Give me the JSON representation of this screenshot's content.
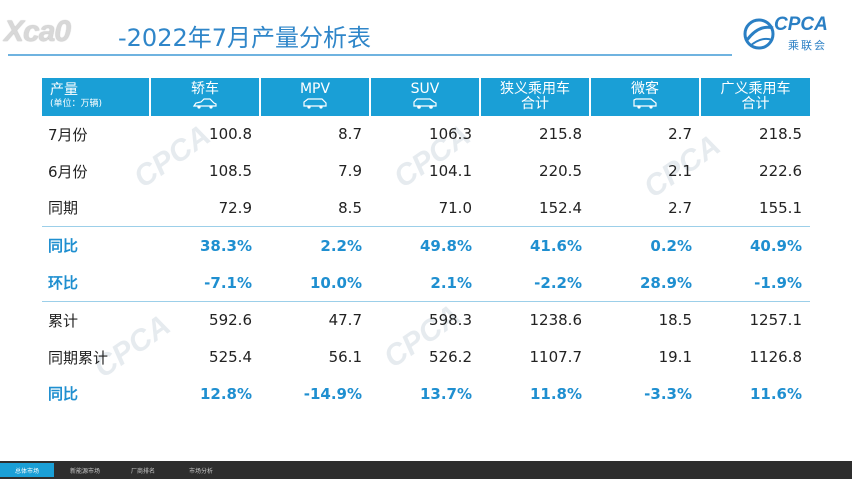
{
  "header": {
    "logo_text": "Xca0",
    "title": "-2022年7月产量分析表",
    "brand_logo": {
      "latin": "CPCA",
      "cn": "乘联会"
    }
  },
  "table": {
    "corner": {
      "main": "产量",
      "sub": "(单位：万辆)"
    },
    "columns": [
      {
        "label_lines": [
          "轿车"
        ],
        "icon": "sedan-icon"
      },
      {
        "label_lines": [
          "MPV"
        ],
        "icon": "mpv-icon"
      },
      {
        "label_lines": [
          "SUV"
        ],
        "icon": "suv-icon"
      },
      {
        "label_lines": [
          "狭义乘用车",
          "合计"
        ],
        "icon": ""
      },
      {
        "label_lines": [
          "微客"
        ],
        "icon": "minivan-icon"
      },
      {
        "label_lines": [
          "广义乘用车",
          "合计"
        ],
        "icon": ""
      }
    ],
    "rows": [
      {
        "label": "7月份",
        "values": [
          "100.8",
          "8.7",
          "106.3",
          "215.8",
          "2.7",
          "218.5"
        ],
        "highlight": false
      },
      {
        "label": "6月份",
        "values": [
          "108.5",
          "7.9",
          "104.1",
          "220.5",
          "2.1",
          "222.6"
        ],
        "highlight": false
      },
      {
        "label": "同期",
        "values": [
          "72.9",
          "8.5",
          "71.0",
          "152.4",
          "2.7",
          "155.1"
        ],
        "highlight": false
      },
      {
        "label": "同比",
        "values": [
          "38.3%",
          "2.2%",
          "49.8%",
          "41.6%",
          "0.2%",
          "40.9%"
        ],
        "highlight": true
      },
      {
        "label": "环比",
        "values": [
          "-7.1%",
          "10.0%",
          "2.1%",
          "-2.2%",
          "28.9%",
          "-1.9%"
        ],
        "highlight": true
      },
      {
        "label": "累计",
        "values": [
          "592.6",
          "47.7",
          "598.3",
          "1238.6",
          "18.5",
          "1257.1"
        ],
        "highlight": false
      },
      {
        "label": "同期累计",
        "values": [
          "525.4",
          "56.1",
          "526.2",
          "1107.7",
          "19.1",
          "1126.8"
        ],
        "highlight": false
      },
      {
        "label": "同比",
        "values": [
          "12.8%",
          "-14.9%",
          "13.7%",
          "11.8%",
          "-3.3%",
          "11.6%"
        ],
        "highlight": true
      }
    ]
  },
  "bottom_tabs": [
    "总体市场",
    "新能源市场",
    "厂商排名",
    "市场分析"
  ],
  "colors": {
    "header_bg": "#1a9fd6",
    "highlight_text": "#1f8fd0",
    "title": "#2f86c9"
  }
}
